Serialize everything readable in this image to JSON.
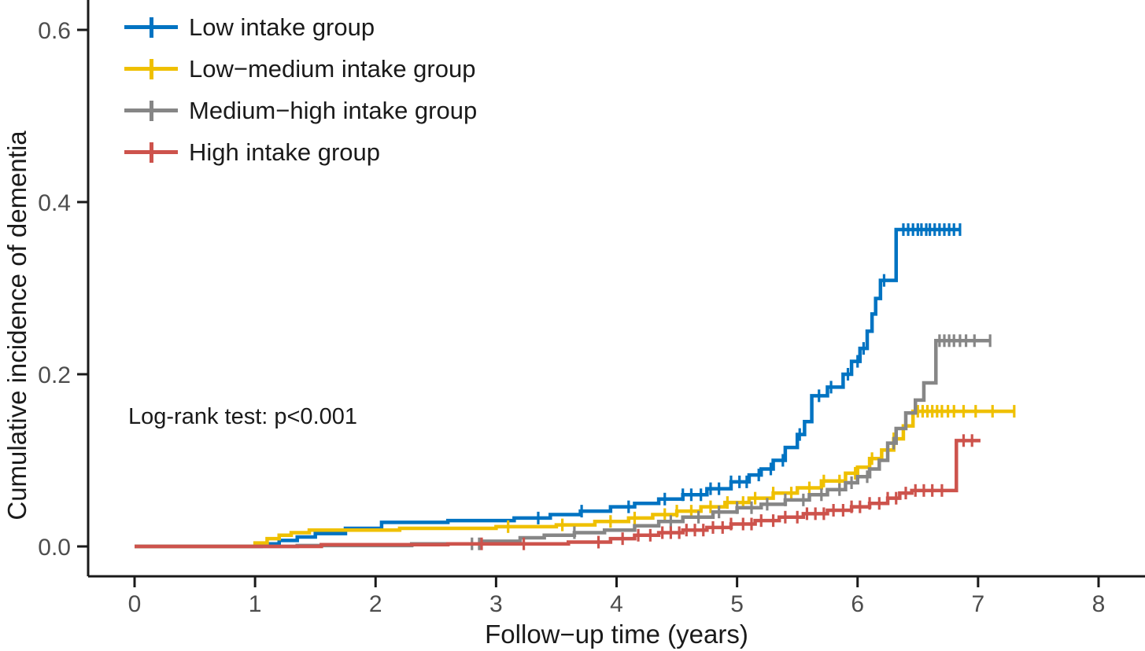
{
  "annotation": {
    "text": "Log-rank test: p<0.001"
  },
  "axes": {
    "x": {
      "label": "Follow−up time (years)",
      "tick_labels": [
        "0",
        "1",
        "2",
        "3",
        "4",
        "5",
        "6",
        "7",
        "8"
      ]
    },
    "y": {
      "label": "Cumulative incidence of dementia",
      "tick_labels": [
        "0.0",
        "0.2",
        "0.4",
        "0.6"
      ]
    }
  },
  "chart_data": {
    "type": "line",
    "subtype": "cumulative-incidence-step-curves",
    "title": "",
    "xlabel": "Follow−up time (years)",
    "ylabel": "Cumulative incidence of dementia",
    "xlim": [
      0,
      8.4
    ],
    "ylim": [
      0,
      0.62
    ],
    "x_ticks": [
      0,
      1,
      2,
      3,
      4,
      5,
      6,
      7,
      8
    ],
    "y_ticks": [
      0.0,
      0.2,
      0.4,
      0.6
    ],
    "grid": false,
    "legend_position": "top-left",
    "annotation_text": "Log-rank test: p<0.001",
    "line_style": "step-after",
    "series": [
      {
        "name": "Low intake group",
        "color": "#0073C2",
        "points": [
          [
            0,
            0
          ],
          [
            1.05,
            0.003
          ],
          [
            1.2,
            0.007
          ],
          [
            1.35,
            0.011
          ],
          [
            1.5,
            0.015
          ],
          [
            1.75,
            0.021
          ],
          [
            2.05,
            0.028
          ],
          [
            2.6,
            0.03
          ],
          [
            3.15,
            0.033
          ],
          [
            3.45,
            0.037
          ],
          [
            3.7,
            0.041
          ],
          [
            3.95,
            0.046
          ],
          [
            4.15,
            0.05
          ],
          [
            4.35,
            0.055
          ],
          [
            4.55,
            0.06
          ],
          [
            4.75,
            0.067
          ],
          [
            4.95,
            0.075
          ],
          [
            5.1,
            0.083
          ],
          [
            5.2,
            0.09
          ],
          [
            5.3,
            0.1
          ],
          [
            5.4,
            0.115
          ],
          [
            5.5,
            0.13
          ],
          [
            5.56,
            0.145
          ],
          [
            5.62,
            0.175
          ],
          [
            5.75,
            0.185
          ],
          [
            5.88,
            0.2
          ],
          [
            5.95,
            0.215
          ],
          [
            6.02,
            0.23
          ],
          [
            6.08,
            0.25
          ],
          [
            6.12,
            0.27
          ],
          [
            6.15,
            0.288
          ],
          [
            6.19,
            0.309
          ],
          [
            6.32,
            0.368
          ],
          [
            6.85,
            0.368
          ]
        ],
        "censor_times": [
          3.35,
          3.71,
          4.1,
          4.4,
          4.55,
          4.62,
          4.7,
          4.78,
          4.85,
          4.95,
          5.02,
          5.08,
          5.18,
          5.28,
          5.38,
          5.52,
          5.68,
          5.78,
          5.92,
          6.0,
          6.05,
          6.22,
          6.38,
          6.42,
          6.46,
          6.5,
          6.53,
          6.57,
          6.6,
          6.64,
          6.68,
          6.72,
          6.76,
          6.8,
          6.85
        ]
      },
      {
        "name": "Low−medium intake group",
        "color": "#EFC000",
        "points": [
          [
            0,
            0
          ],
          [
            1.0,
            0.004
          ],
          [
            1.1,
            0.009
          ],
          [
            1.2,
            0.013
          ],
          [
            1.3,
            0.016
          ],
          [
            1.45,
            0.019
          ],
          [
            2.2,
            0.021
          ],
          [
            3.0,
            0.023
          ],
          [
            3.5,
            0.025
          ],
          [
            3.82,
            0.029
          ],
          [
            4.1,
            0.033
          ],
          [
            4.3,
            0.037
          ],
          [
            4.5,
            0.041
          ],
          [
            4.7,
            0.046
          ],
          [
            4.9,
            0.051
          ],
          [
            5.1,
            0.056
          ],
          [
            5.3,
            0.062
          ],
          [
            5.5,
            0.068
          ],
          [
            5.7,
            0.076
          ],
          [
            5.9,
            0.085
          ],
          [
            6.0,
            0.092
          ],
          [
            6.1,
            0.102
          ],
          [
            6.2,
            0.112
          ],
          [
            6.3,
            0.125
          ],
          [
            6.38,
            0.14
          ],
          [
            6.46,
            0.157
          ],
          [
            7.3,
            0.157
          ]
        ],
        "censor_times": [
          3.1,
          3.55,
          3.95,
          4.15,
          4.4,
          4.5,
          4.62,
          4.78,
          4.92,
          5.05,
          5.15,
          5.3,
          5.45,
          5.6,
          5.72,
          5.85,
          5.98,
          6.12,
          6.3,
          6.5,
          6.54,
          6.58,
          6.62,
          6.66,
          6.7,
          6.75,
          6.8,
          6.88,
          6.98,
          7.12,
          7.3
        ]
      },
      {
        "name": "Medium−high intake group",
        "color": "#868686",
        "points": [
          [
            0,
            0
          ],
          [
            1.35,
            0.001
          ],
          [
            2.3,
            0.003
          ],
          [
            2.9,
            0.006
          ],
          [
            3.2,
            0.01
          ],
          [
            3.4,
            0.013
          ],
          [
            3.65,
            0.016
          ],
          [
            3.9,
            0.019
          ],
          [
            4.15,
            0.024
          ],
          [
            4.35,
            0.029
          ],
          [
            4.55,
            0.034
          ],
          [
            4.8,
            0.04
          ],
          [
            5.0,
            0.045
          ],
          [
            5.2,
            0.049
          ],
          [
            5.4,
            0.054
          ],
          [
            5.6,
            0.06
          ],
          [
            5.75,
            0.066
          ],
          [
            5.9,
            0.074
          ],
          [
            6.0,
            0.081
          ],
          [
            6.1,
            0.09
          ],
          [
            6.18,
            0.1
          ],
          [
            6.25,
            0.12
          ],
          [
            6.32,
            0.137
          ],
          [
            6.4,
            0.155
          ],
          [
            6.48,
            0.17
          ],
          [
            6.55,
            0.19
          ],
          [
            6.65,
            0.239
          ],
          [
            7.1,
            0.239
          ]
        ],
        "censor_times": [
          2.8,
          2.86,
          3.65,
          4.45,
          4.68,
          4.85,
          5.0,
          5.12,
          5.25,
          5.4,
          5.55,
          5.7,
          5.85,
          5.95,
          6.08,
          6.3,
          6.68,
          6.72,
          6.76,
          6.8,
          6.85,
          6.9,
          6.97,
          7.1
        ]
      },
      {
        "name": "High intake group",
        "color": "#CD534C",
        "points": [
          [
            0,
            0
          ],
          [
            1.55,
            0.002
          ],
          [
            2.6,
            0.003
          ],
          [
            3.6,
            0.005
          ],
          [
            3.95,
            0.009
          ],
          [
            4.15,
            0.013
          ],
          [
            4.35,
            0.016
          ],
          [
            4.55,
            0.019
          ],
          [
            4.75,
            0.022
          ],
          [
            4.95,
            0.026
          ],
          [
            5.15,
            0.03
          ],
          [
            5.35,
            0.034
          ],
          [
            5.55,
            0.038
          ],
          [
            5.75,
            0.042
          ],
          [
            5.95,
            0.046
          ],
          [
            6.1,
            0.05
          ],
          [
            6.25,
            0.056
          ],
          [
            6.35,
            0.062
          ],
          [
            6.45,
            0.065
          ],
          [
            6.82,
            0.123
          ],
          [
            7.02,
            0.123
          ]
        ],
        "censor_times": [
          2.88,
          3.23,
          3.85,
          4.05,
          4.18,
          4.28,
          4.38,
          4.45,
          4.52,
          4.58,
          4.65,
          4.72,
          4.8,
          4.88,
          4.95,
          5.05,
          5.12,
          5.2,
          5.3,
          5.4,
          5.5,
          5.58,
          5.65,
          5.72,
          5.8,
          5.88,
          5.95,
          6.02,
          6.1,
          6.18,
          6.25,
          6.32,
          6.4,
          6.48,
          6.55,
          6.62,
          6.7,
          6.88,
          6.95
        ]
      }
    ]
  }
}
